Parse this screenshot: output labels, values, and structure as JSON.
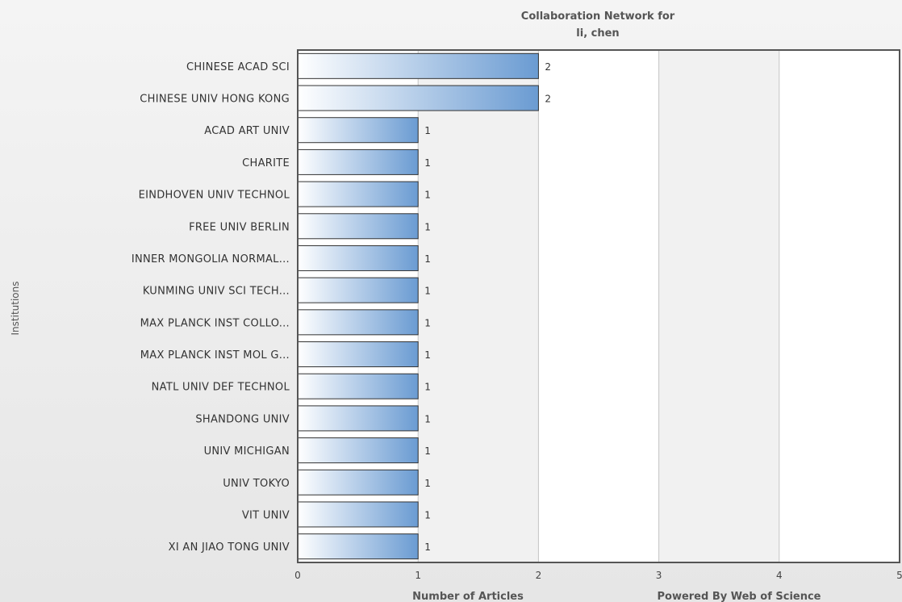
{
  "chart_data": {
    "type": "bar",
    "orientation": "horizontal",
    "title": [
      "Collaboration Network for",
      "li, chen"
    ],
    "xlabel": "Number of Articles",
    "ylabel": "Institutions",
    "xlim": [
      0,
      5
    ],
    "xticks": [
      "0",
      "1",
      "2",
      "3",
      "4",
      "5"
    ],
    "grid": "vertical",
    "categories": [
      "CHINESE ACAD SCI",
      "CHINESE UNIV HONG KONG",
      "ACAD ART UNIV",
      "CHARITE",
      "EINDHOVEN UNIV TECHNOL",
      "FREE UNIV BERLIN",
      "INNER MONGOLIA NORMAL...",
      "KUNMING UNIV SCI TECH...",
      "MAX PLANCK INST COLLO...",
      "MAX PLANCK INST MOL G...",
      "NATL UNIV DEF TECHNOL",
      "SHANDONG UNIV",
      "UNIV MICHIGAN",
      "UNIV TOKYO",
      "VIT UNIV",
      "XI AN JIAO TONG UNIV"
    ],
    "values": [
      2,
      2,
      1,
      1,
      1,
      1,
      1,
      1,
      1,
      1,
      1,
      1,
      1,
      1,
      1,
      1
    ],
    "data_labels": [
      "2",
      "2",
      "1",
      "1",
      "1",
      "1",
      "1",
      "1",
      "1",
      "1",
      "1",
      "1",
      "1",
      "1",
      "1",
      "1"
    ],
    "colors": {
      "bar_start": "#ffffff",
      "bar_end": "#6a9bd2",
      "bar_stroke": "#333333",
      "band": "#f1f1f1",
      "grid": "#c4c4c4",
      "frame": "#555555"
    }
  },
  "credit": "Powered By Web of Science"
}
